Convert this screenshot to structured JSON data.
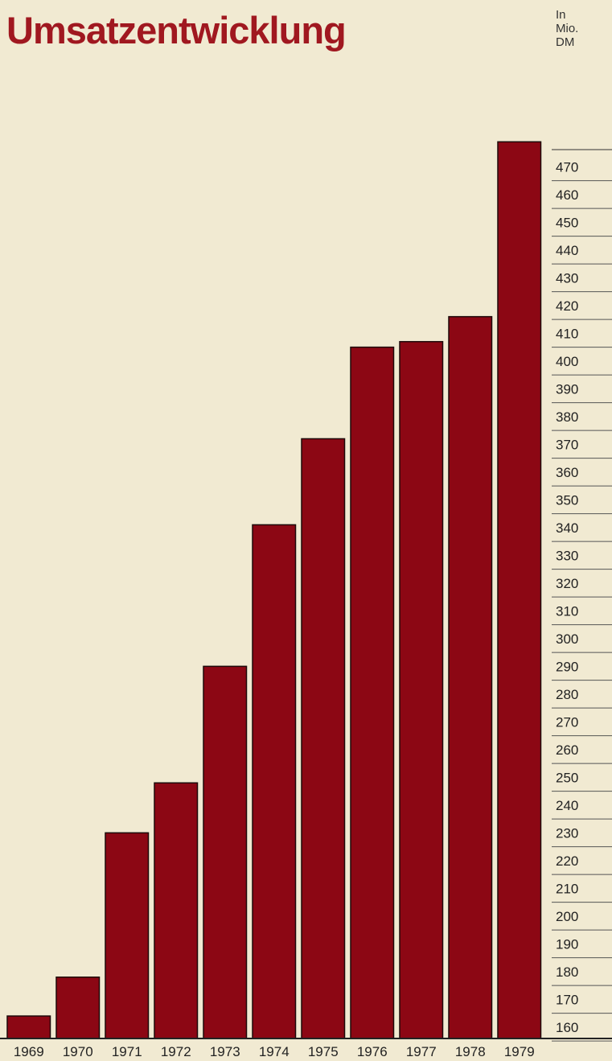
{
  "chart_data": {
    "type": "bar",
    "title": "Umsatzentwicklung",
    "unit_label": [
      "In",
      "Mio.",
      "DM"
    ],
    "categories": [
      "1969",
      "1970",
      "1971",
      "1972",
      "1973",
      "1974",
      "1975",
      "1976",
      "1977",
      "1978",
      "1979"
    ],
    "values": [
      164,
      178,
      230,
      248,
      290,
      341,
      372,
      405,
      407,
      416,
      479
    ],
    "ylim": [
      155,
      480
    ],
    "yticks": [
      160,
      170,
      180,
      190,
      200,
      210,
      220,
      230,
      240,
      250,
      260,
      270,
      280,
      290,
      300,
      310,
      320,
      330,
      340,
      350,
      360,
      370,
      380,
      390,
      400,
      410,
      420,
      430,
      440,
      450,
      460,
      470
    ],
    "bar_color": "#8c0714",
    "grid": false,
    "axis_side": "right"
  }
}
